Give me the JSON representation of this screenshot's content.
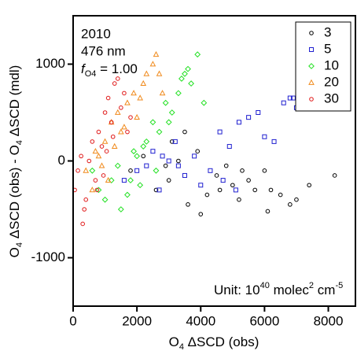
{
  "chart_data": {
    "type": "scatter",
    "x_label": [
      "O",
      "4",
      " ΔSCD (obs)"
    ],
    "y_label": [
      "O",
      "4",
      " ΔSCD (obs) - O",
      "4",
      " ΔSCD (mdl)"
    ],
    "annotations": {
      "year": "2010",
      "wavelength": "476 nm",
      "factor": [
        "f",
        "O4",
        " = 1.00"
      ],
      "unit": [
        "Unit: 10",
        "40",
        " molec",
        "2",
        " cm",
        "-5"
      ]
    },
    "xlim": [
      0,
      8850
    ],
    "ylim": [
      -1500,
      1500
    ],
    "xticks": [
      0,
      2000,
      4000,
      6000,
      8000
    ],
    "yticks": [
      -1000,
      0,
      1000
    ],
    "legend": "upper right",
    "series": [
      {
        "name": "3",
        "color": "#000000",
        "marker": "circle",
        "x": [
          1800,
          2200,
          2600,
          3000,
          3300,
          3600,
          3900,
          4200,
          4500,
          4800,
          5000,
          5200,
          5500,
          5700,
          6000,
          6200,
          6500,
          6800,
          7000,
          7400,
          8200,
          4000,
          3500,
          2900,
          5300,
          4600,
          3100,
          6100
        ],
        "values": [
          -100,
          50,
          -300,
          -200,
          0,
          -450,
          100,
          -350,
          -150,
          -50,
          -250,
          -400,
          -200,
          -300,
          -100,
          -300,
          -350,
          -450,
          -400,
          -250,
          -150,
          -550,
          300,
          -50,
          -100,
          -300,
          200,
          -520
        ]
      },
      {
        "name": "5",
        "color": "#1f1fd0",
        "marker": "square",
        "x": [
          1600,
          2000,
          2300,
          2500,
          2700,
          3000,
          3200,
          3500,
          3800,
          4000,
          4300,
          4600,
          4900,
          5200,
          5500,
          5800,
          6000,
          6300,
          6600,
          6900,
          7000,
          5100,
          4700,
          3300,
          2800,
          6800
        ],
        "values": [
          -200,
          -100,
          -50,
          100,
          -300,
          0,
          200,
          -150,
          50,
          -250,
          -100,
          300,
          150,
          400,
          450,
          500,
          250,
          200,
          600,
          650,
          550,
          -300,
          -200,
          -50,
          50,
          650
        ]
      },
      {
        "name": "10",
        "color": "#22e022",
        "marker": "diamond",
        "x": [
          600,
          800,
          1000,
          1200,
          1500,
          1700,
          1900,
          2100,
          2300,
          2500,
          2700,
          2900,
          3100,
          3300,
          3500,
          3700,
          3900,
          4100,
          2600,
          2000,
          1400,
          3000,
          3400,
          3600,
          2200,
          1800
        ],
        "values": [
          -100,
          -300,
          -400,
          -200,
          -500,
          -350,
          100,
          -250,
          200,
          400,
          300,
          600,
          500,
          700,
          900,
          800,
          1100,
          600,
          -100,
          50,
          -50,
          400,
          850,
          950,
          150,
          -200
        ]
      },
      {
        "name": "20",
        "color": "#f08a1c",
        "marker": "triangle",
        "x": [
          400,
          600,
          800,
          1000,
          1200,
          1400,
          1500,
          1700,
          1900,
          2000,
          2200,
          2300,
          2500,
          2600,
          2700,
          2800,
          1100,
          900,
          1300,
          1600,
          2100,
          700
        ],
        "values": [
          -100,
          -300,
          50,
          200,
          400,
          500,
          300,
          600,
          700,
          450,
          800,
          900,
          1000,
          1100,
          900,
          700,
          -200,
          -50,
          150,
          350,
          650,
          100
        ]
      },
      {
        "name": "30",
        "color": "#e01818",
        "marker": "circle",
        "x": [
          50,
          150,
          300,
          400,
          500,
          600,
          700,
          800,
          900,
          1000,
          1100,
          1200,
          1300,
          1400,
          1500,
          1600,
          1700,
          1800,
          350,
          750,
          1050,
          1250,
          250,
          950
        ],
        "values": [
          -300,
          -100,
          -650,
          -400,
          0,
          200,
          -200,
          300,
          150,
          500,
          650,
          400,
          800,
          850,
          550,
          700,
          300,
          450,
          -500,
          -300,
          100,
          250,
          50,
          -150
        ]
      }
    ]
  }
}
